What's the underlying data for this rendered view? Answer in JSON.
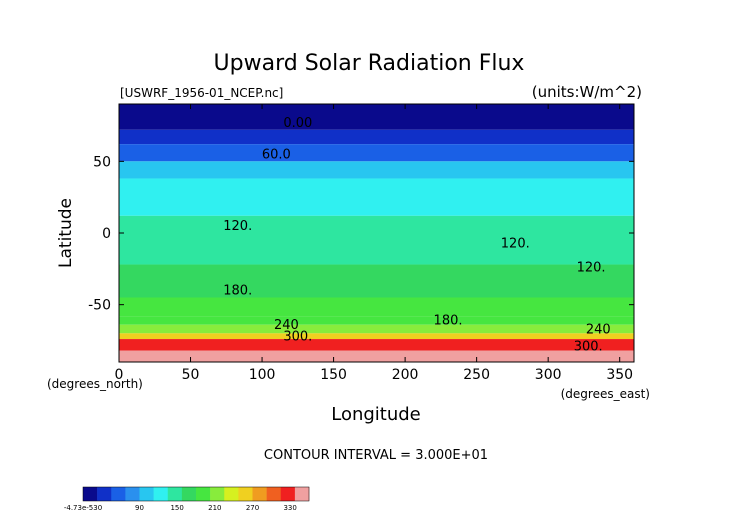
{
  "chart_data": {
    "type": "heatmap",
    "title": "Upward Solar Radiation Flux",
    "subtitle_left": "[USWRF_1956-01_NCEP.nc]",
    "subtitle_right": "(units:W/m^2)",
    "xlabel": "Longitude",
    "xunits": "(degrees_east)",
    "ylabel": "Latitude",
    "yunits": "(degrees_north)",
    "xlim": [
      0,
      360
    ],
    "ylim": [
      -90,
      90
    ],
    "x_ticks": [
      0,
      50,
      100,
      150,
      200,
      250,
      300,
      350
    ],
    "y_ticks": [
      50,
      0,
      -50
    ],
    "contour_interval_text": "CONTOUR INTERVAL = 3.000E+01",
    "contour_labels": [
      {
        "text": "0.00",
        "lon": 125,
        "lat": 74
      },
      {
        "text": "60.0",
        "lon": 110,
        "lat": 52
      },
      {
        "text": "120.",
        "lon": 83,
        "lat": 2
      },
      {
        "text": "120.",
        "lon": 277,
        "lat": -10
      },
      {
        "text": "120.",
        "lon": 330,
        "lat": -27
      },
      {
        "text": "180.",
        "lon": 83,
        "lat": -43
      },
      {
        "text": "180.",
        "lon": 230,
        "lat": -64
      },
      {
        "text": "240",
        "lon": 117,
        "lat": -67
      },
      {
        "text": "240",
        "lon": 335,
        "lat": -70
      },
      {
        "text": "300.",
        "lon": 125,
        "lat": -75
      },
      {
        "text": "300.",
        "lon": 328,
        "lat": -82
      }
    ],
    "latitude_bands": [
      {
        "lat_from": 90,
        "lat_to": 72,
        "value": 0
      },
      {
        "lat_from": 72,
        "lat_to": 62,
        "value": 40
      },
      {
        "lat_from": 62,
        "lat_to": 50,
        "value": 65
      },
      {
        "lat_from": 50,
        "lat_to": 38,
        "value": 95
      },
      {
        "lat_from": 38,
        "lat_to": 12,
        "value": 125
      },
      {
        "lat_from": 12,
        "lat_to": -22,
        "value": 150
      },
      {
        "lat_from": -22,
        "lat_to": -45,
        "value": 170
      },
      {
        "lat_from": -45,
        "lat_to": -58,
        "value": 185
      },
      {
        "lat_from": -58,
        "lat_to": -64,
        "value": 200
      },
      {
        "lat_from": -64,
        "lat_to": -70,
        "value": 215
      },
      {
        "lat_from": -70,
        "lat_to": -74,
        "value": 260
      },
      {
        "lat_from": -74,
        "lat_to": -82,
        "value": 320
      },
      {
        "lat_from": -82,
        "lat_to": -90,
        "value": 345
      }
    ],
    "colorbar": {
      "tick_labels": [
        "-4.73e-530",
        "90",
        "150",
        "210",
        "270",
        "330"
      ],
      "tick_values": [
        0,
        90,
        150,
        210,
        270,
        330
      ],
      "range": [
        0,
        360
      ],
      "colors": [
        "#0a0a8c",
        "#1030c8",
        "#1a60e6",
        "#2a90ee",
        "#28c6f0",
        "#30f0f0",
        "#2ee6a0",
        "#34d860",
        "#46e640",
        "#88ec3c",
        "#d6f020",
        "#f0d020",
        "#f09c20",
        "#f06020",
        "#f02020",
        "#f0a0a0"
      ]
    }
  }
}
